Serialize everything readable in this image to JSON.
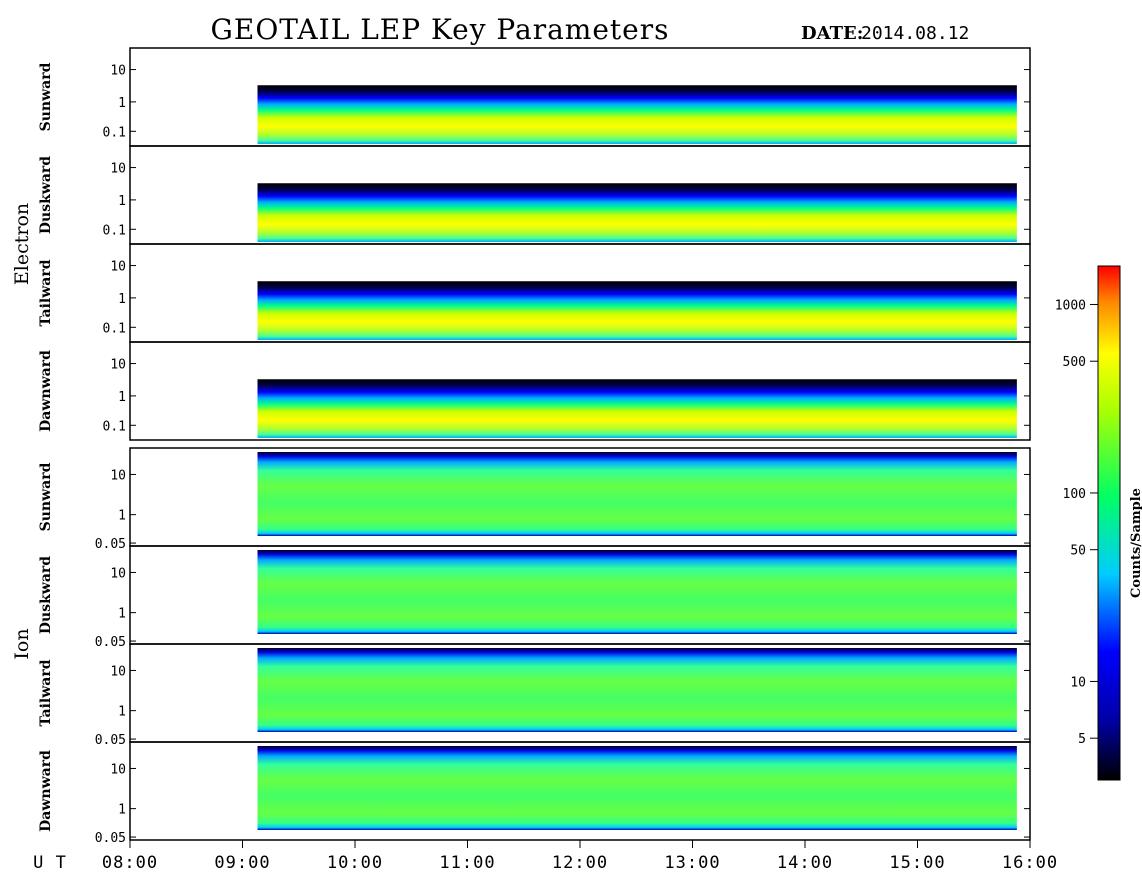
{
  "title": "GEOTAIL LEP Key Parameters",
  "date_label": "DATE:",
  "date_value": "2014.08.12",
  "chart_data": {
    "type": "heatmap",
    "x_axis": {
      "label": "U T",
      "range": [
        "08:00",
        "16:00"
      ],
      "ticks": [
        "08:00",
        "09:00",
        "10:00",
        "11:00",
        "12:00",
        "13:00",
        "14:00",
        "15:00",
        "16:00"
      ],
      "data_start": "09:08",
      "data_end": "15:53"
    },
    "groups": [
      {
        "name": "Electron",
        "yscale": "log",
        "yticks": [
          "10",
          "1",
          "0.1"
        ],
        "panels": [
          "Sunward",
          "Duskward",
          "Tailward",
          "Dawnward"
        ]
      },
      {
        "name": "Ion",
        "yscale": "log",
        "yticks": [
          "10",
          "1",
          "0.05"
        ],
        "panels": [
          "Sunward",
          "Duskward",
          "Tailward",
          "Dawnward"
        ]
      }
    ],
    "colorbar": {
      "label": "Counts/Sample",
      "scale": "log",
      "ticks": [
        "1000",
        "500",
        "100",
        "50",
        "10",
        "5"
      ],
      "tick_values": [
        1000,
        500,
        100,
        50,
        10,
        5
      ],
      "range": [
        3,
        1600
      ],
      "colors": [
        "#000000",
        "#0000ff",
        "#00ffff",
        "#00ff00",
        "#ffff00",
        "#ff0000"
      ]
    }
  }
}
